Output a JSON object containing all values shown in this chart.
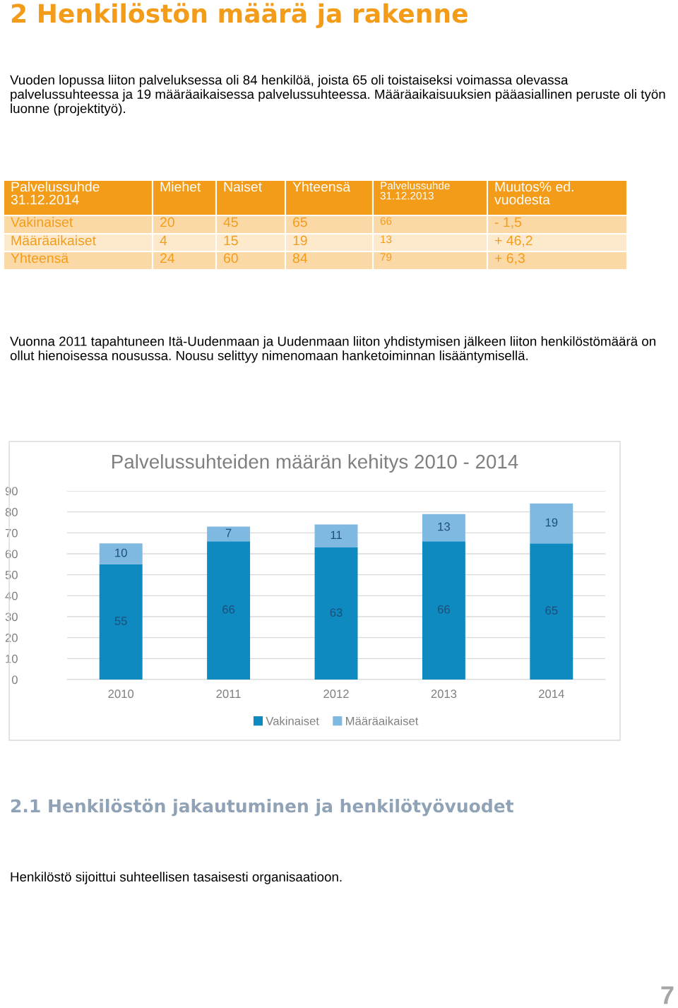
{
  "chart_data": [
    {
      "type": "other",
      "title": "2 Henkilöstön määrä ja rakenne",
      "annotations": [
        "Vuoden lopussa liiton palveluksessa oli 84 henkilöä, joista 65 oli toistaiseksi voimassa olevassa palvelussuhteessa ja 19 määräaikaisessa palvelussuhteessa. Määräaikaisuuksien pääasiallinen peruste oli työn luonne (projektityö).",
        "Palvelussuhde\n31.12.2014",
        "Miehet",
        "Naiset",
        "Yhteensä",
        "Palvelussuhde\n31.12.2013",
        "Muutos% ed.\nvuodesta",
        "Vakinaiset",
        "20",
        "45",
        "65",
        "66",
        "- 1,5",
        "Määräaikaiset",
        "4",
        "15",
        "19",
        "13",
        "+ 46,2",
        "Yhteensä",
        "24",
        "60",
        "84",
        "79",
        "+ 6,3",
        "Vuonna 2011 tapahtuneen Itä-Uudenmaan ja Uudenmaan liiton yhdistymisen jälkeen liiton henkilöstömäärä on ollut hienoisessa nousussa. Nousu selittyy nimenomaan hanketoiminnan lisääntymisellä."
      ]
    },
    {
      "type": "bar",
      "title": "Palvelussuhteiden määrän kehitys 2010 - 2014",
      "categories": [
        "2010",
        "2011",
        "2012",
        "2013",
        "2014"
      ],
      "stacked": true,
      "series": [
        {
          "name": "Vakinaiset",
          "color": "#0e8ac0",
          "values": [
            55,
            66,
            63,
            66,
            65
          ]
        },
        {
          "name": "Määräaikaiset",
          "color": "#7fb9e1",
          "values": [
            10,
            7,
            11,
            13,
            19
          ]
        }
      ],
      "ylim": [
        0,
        90
      ],
      "yticks": [
        0,
        10,
        20,
        30,
        40,
        50,
        60,
        70,
        80,
        90
      ],
      "grid": "y",
      "legend": "bottom",
      "data_labels": true
    },
    {
      "type": "other",
      "title": "2.1 Henkilöstön jakautuminen ja henkilötyövuodet",
      "annotations": [
        "Henkilöstö sijoittui suhteellisen tasaisesti organisaatioon.",
        "7"
      ]
    }
  ]
}
